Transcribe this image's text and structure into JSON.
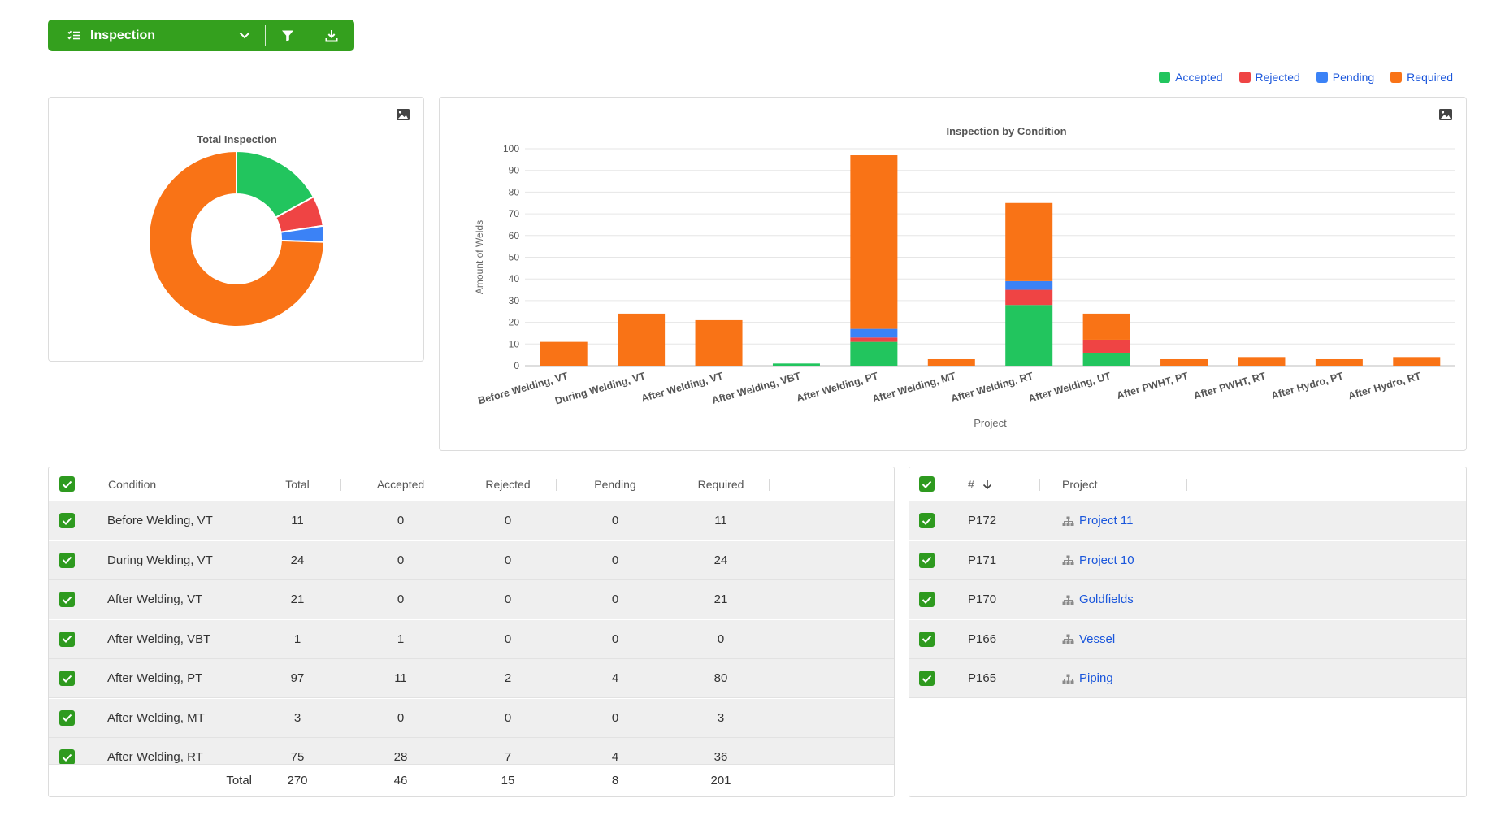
{
  "toolbar": {
    "title": "Inspection",
    "list_icon": "checklist-icon",
    "dropdown_icon": "chevron-down-icon",
    "filter_icon": "filter-icon",
    "download_icon": "download-icon"
  },
  "colors": {
    "accepted": "#22c55e",
    "rejected": "#ef4444",
    "pending": "#3b82f6",
    "required": "#f97316",
    "brand_green": "#34a01e"
  },
  "legend": [
    {
      "key": "accepted",
      "label": "Accepted",
      "color": "#22c55e"
    },
    {
      "key": "rejected",
      "label": "Rejected",
      "color": "#ef4444"
    },
    {
      "key": "pending",
      "label": "Pending",
      "color": "#3b82f6"
    },
    {
      "key": "required",
      "label": "Required",
      "color": "#f97316"
    }
  ],
  "chart_data": [
    {
      "type": "pie",
      "donut": true,
      "title": "Total Inspection",
      "slices": [
        {
          "label": "Accepted",
          "value": 46,
          "color": "#22c55e"
        },
        {
          "label": "Rejected",
          "value": 15,
          "color": "#ef4444"
        },
        {
          "label": "Pending",
          "value": 8,
          "color": "#3b82f6"
        },
        {
          "label": "Required",
          "value": 201,
          "color": "#f97316"
        }
      ]
    },
    {
      "type": "bar",
      "stacked": true,
      "title": "Inspection by Condition",
      "xlabel": "Project",
      "ylabel": "Amount of Welds",
      "ylim": [
        0,
        100
      ],
      "yticks": [
        0,
        10,
        20,
        30,
        40,
        50,
        60,
        70,
        80,
        90,
        100
      ],
      "grid": true,
      "categories": [
        "Before Welding, VT",
        "During Welding, VT",
        "After Welding, VT",
        "After Welding, VBT",
        "After Welding, PT",
        "After Welding, MT",
        "After Welding, RT",
        "After Welding, UT",
        "After PWHT, PT",
        "After PWHT, RT",
        "After Hydro, PT",
        "After Hydro, RT"
      ],
      "series": [
        {
          "name": "Accepted",
          "color": "#22c55e",
          "values": [
            0,
            0,
            0,
            1,
            11,
            0,
            28,
            6,
            0,
            0,
            0,
            0
          ]
        },
        {
          "name": "Rejected",
          "color": "#ef4444",
          "values": [
            0,
            0,
            0,
            0,
            2,
            0,
            7,
            6,
            0,
            0,
            0,
            0
          ]
        },
        {
          "name": "Pending",
          "color": "#3b82f6",
          "values": [
            0,
            0,
            0,
            0,
            4,
            0,
            4,
            0,
            0,
            0,
            0,
            0
          ]
        },
        {
          "name": "Required",
          "color": "#f97316",
          "values": [
            11,
            24,
            21,
            0,
            80,
            3,
            36,
            12,
            3,
            4,
            3,
            4
          ]
        }
      ]
    }
  ],
  "conditions_table": {
    "headers": {
      "condition": "Condition",
      "total": "Total",
      "accepted": "Accepted",
      "rejected": "Rejected",
      "pending": "Pending",
      "required": "Required"
    },
    "rows": [
      {
        "condition": "Before Welding, VT",
        "total": "11",
        "accepted": "0",
        "rejected": "0",
        "pending": "0",
        "required": "11"
      },
      {
        "condition": "During Welding, VT",
        "total": "24",
        "accepted": "0",
        "rejected": "0",
        "pending": "0",
        "required": "24"
      },
      {
        "condition": "After Welding, VT",
        "total": "21",
        "accepted": "0",
        "rejected": "0",
        "pending": "0",
        "required": "21"
      },
      {
        "condition": "After Welding, VBT",
        "total": "1",
        "accepted": "1",
        "rejected": "0",
        "pending": "0",
        "required": "0"
      },
      {
        "condition": "After Welding, PT",
        "total": "97",
        "accepted": "11",
        "rejected": "2",
        "pending": "4",
        "required": "80"
      },
      {
        "condition": "After Welding, MT",
        "total": "3",
        "accepted": "0",
        "rejected": "0",
        "pending": "0",
        "required": "3"
      },
      {
        "condition": "After Welding, RT",
        "total": "75",
        "accepted": "28",
        "rejected": "7",
        "pending": "4",
        "required": "36"
      }
    ],
    "totals": {
      "label": "Total",
      "total": "270",
      "accepted": "46",
      "rejected": "15",
      "pending": "8",
      "required": "201"
    }
  },
  "projects_table": {
    "headers": {
      "number": "#",
      "project": "Project"
    },
    "sort_icon": "arrow-down-icon",
    "project_icon": "hierarchy-icon",
    "rows": [
      {
        "number": "P172",
        "project": "Project 11"
      },
      {
        "number": "P171",
        "project": "Project 10"
      },
      {
        "number": "P170",
        "project": "Goldfields"
      },
      {
        "number": "P166",
        "project": "Vessel"
      },
      {
        "number": "P165",
        "project": "Piping"
      }
    ]
  }
}
